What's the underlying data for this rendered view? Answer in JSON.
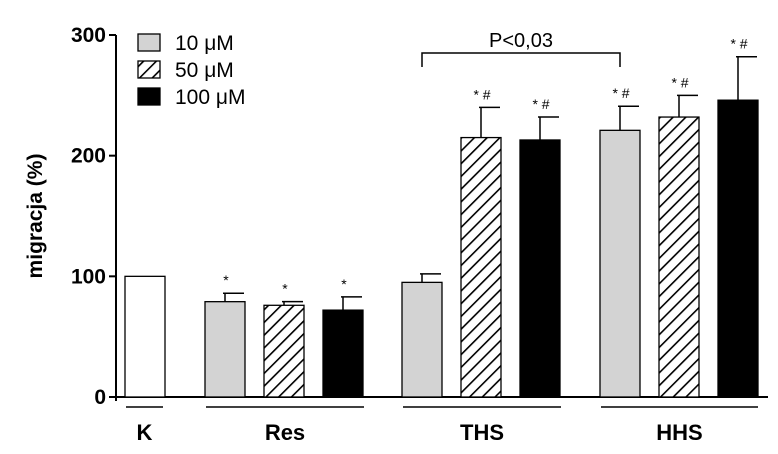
{
  "chart_data": {
    "type": "bar",
    "ylabel": "migracja (%)",
    "ylim": [
      0,
      300
    ],
    "yticks": [
      "0",
      "100",
      "200",
      "300"
    ],
    "legend": [
      {
        "label": "10 μM",
        "pattern": "solid-gray"
      },
      {
        "label": "50 μM",
        "pattern": "hatched"
      },
      {
        "label": "100 μM",
        "pattern": "solid-black"
      }
    ],
    "groups": [
      {
        "label": "K",
        "bars": [
          {
            "value": 100,
            "error": 0,
            "pattern": "white",
            "sig": ""
          }
        ]
      },
      {
        "label": "Res",
        "bars": [
          {
            "value": 79,
            "error": 7,
            "pattern": "solid-gray",
            "sig": "*"
          },
          {
            "value": 76,
            "error": 3,
            "pattern": "hatched",
            "sig": "*"
          },
          {
            "value": 72,
            "error": 11,
            "pattern": "solid-black",
            "sig": "*"
          }
        ]
      },
      {
        "label": "THS",
        "bars": [
          {
            "value": 95,
            "error": 7,
            "pattern": "solid-gray",
            "sig": ""
          },
          {
            "value": 215,
            "error": 25,
            "pattern": "hatched",
            "sig": "* #"
          },
          {
            "value": 213,
            "error": 19,
            "pattern": "solid-black",
            "sig": "* #"
          }
        ]
      },
      {
        "label": "HHS",
        "bars": [
          {
            "value": 221,
            "error": 20,
            "pattern": "solid-gray",
            "sig": "* #"
          },
          {
            "value": 232,
            "error": 18,
            "pattern": "hatched",
            "sig": "* #"
          },
          {
            "value": 246,
            "error": 36,
            "pattern": "solid-black",
            "sig": "* #"
          }
        ]
      }
    ],
    "annotations": [
      {
        "text": "P<0,03"
      }
    ],
    "colors": {
      "gray": "#d3d3d3",
      "black": "#000000",
      "white": "#ffffff"
    }
  }
}
